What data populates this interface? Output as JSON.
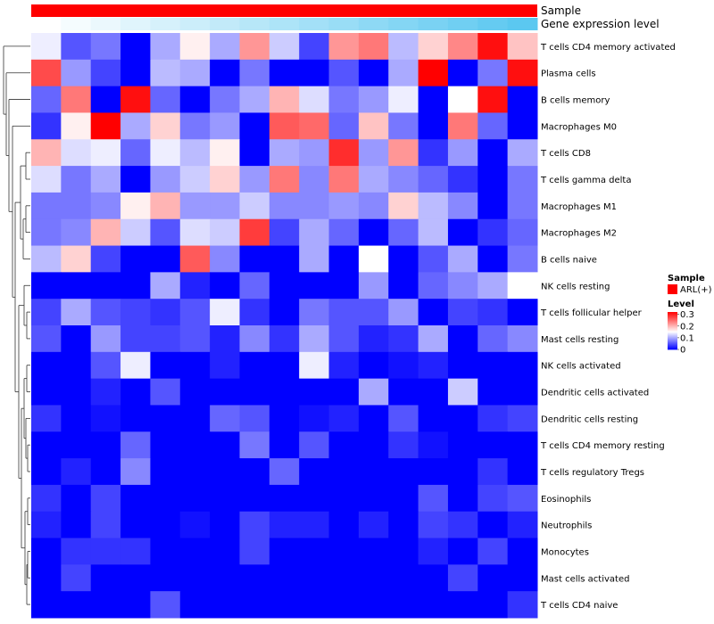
{
  "chart_data": {
    "type": "heatmap",
    "annotation_tracks": [
      "Sample",
      "Gene expression level"
    ],
    "annotation_colors": {
      "Sample": "#ff0000"
    },
    "gene_expression_gradient": [
      "#ffffff",
      "#5bc8f0"
    ],
    "rows": [
      "T cells CD4 memory activated",
      "Plasma cells",
      "B cells memory",
      "Macrophages M0",
      "T cells CD8",
      "T cells gamma delta",
      "Macrophages M1",
      "Macrophages M2",
      "B cells naive",
      "NK cells resting",
      "T cells follicular helper",
      "Mast cells resting",
      "NK cells activated",
      "Dendritic cells activated",
      "Dendritic cells resting",
      "T cells CD4 memory resting",
      "T cells regulatory  Tregs",
      "Eosinophils",
      "Neutrophils",
      "Monocytes",
      "Mast cells activated",
      "T cells CD4 naive"
    ],
    "values": [
      [
        0.14,
        0.05,
        0.07,
        0.0,
        0.1,
        0.16,
        0.1,
        0.22,
        0.12,
        0.04,
        0.22,
        0.24,
        0.11,
        0.18,
        0.23,
        0.31,
        0.19
      ],
      [
        0.27,
        0.09,
        0.04,
        0.0,
        0.11,
        0.1,
        0.0,
        0.07,
        0.0,
        0.0,
        0.05,
        0.0,
        0.1,
        0.32,
        0.0,
        0.07,
        0.31
      ],
      [
        0.06,
        0.24,
        0.0,
        0.31,
        0.06,
        0.0,
        0.07,
        0.1,
        0.2,
        0.13,
        0.07,
        0.09,
        0.14,
        0.0,
        0.15,
        0.31,
        0.0
      ],
      [
        0.03,
        0.16,
        0.32,
        0.1,
        0.18,
        0.07,
        0.09,
        0.0,
        0.26,
        0.25,
        0.06,
        0.19,
        0.07,
        0.0,
        0.24,
        0.06,
        0.0
      ],
      [
        0.2,
        0.13,
        0.14,
        0.06,
        0.14,
        0.11,
        0.16,
        0.0,
        0.1,
        0.09,
        0.29,
        0.09,
        0.22,
        0.03,
        0.09,
        0.0,
        0.1
      ],
      [
        0.13,
        0.07,
        0.1,
        0.0,
        0.09,
        0.12,
        0.18,
        0.09,
        0.24,
        0.08,
        0.24,
        0.1,
        0.08,
        0.06,
        0.03,
        0.0,
        0.07
      ],
      [
        0.07,
        0.07,
        0.08,
        0.16,
        0.2,
        0.09,
        0.09,
        0.12,
        0.08,
        0.08,
        0.09,
        0.08,
        0.18,
        0.11,
        0.08,
        0.0,
        0.07
      ],
      [
        0.07,
        0.08,
        0.2,
        0.12,
        0.05,
        0.13,
        0.12,
        0.28,
        0.04,
        0.1,
        0.06,
        0.0,
        0.06,
        0.11,
        0.0,
        0.03,
        0.06
      ],
      [
        0.11,
        0.18,
        0.04,
        0.0,
        0.0,
        0.26,
        0.08,
        0.0,
        0.0,
        0.1,
        0.0,
        0.15,
        0.0,
        0.05,
        0.1,
        0.0,
        0.07
      ],
      [
        0.0,
        0.0,
        0.0,
        0.0,
        0.1,
        0.02,
        0.0,
        0.06,
        0.0,
        0.0,
        0.0,
        0.09,
        0.0,
        0.06,
        0.08,
        0.1,
        0.15
      ],
      [
        0.04,
        0.1,
        0.05,
        0.04,
        0.03,
        0.05,
        0.14,
        0.03,
        0.0,
        0.07,
        0.05,
        0.05,
        0.09,
        0.0,
        0.04,
        0.03,
        0.0
      ],
      [
        0.05,
        0.0,
        0.09,
        0.04,
        0.04,
        0.05,
        0.02,
        0.08,
        0.03,
        0.1,
        0.05,
        0.02,
        0.03,
        0.1,
        0.0,
        0.06,
        0.08
      ],
      [
        0.0,
        0.0,
        0.05,
        0.14,
        0.0,
        0.0,
        0.02,
        0.0,
        0.0,
        0.14,
        0.02,
        0.0,
        0.01,
        0.02,
        0.0,
        0.0,
        0.0
      ],
      [
        0.0,
        0.0,
        0.02,
        0.0,
        0.05,
        0.0,
        0.0,
        0.0,
        0.0,
        0.0,
        0.0,
        0.1,
        0.0,
        0.0,
        0.12,
        0.0,
        0.0
      ],
      [
        0.03,
        0.0,
        0.01,
        0.0,
        0.0,
        0.0,
        0.06,
        0.05,
        0.0,
        0.01,
        0.02,
        0.0,
        0.05,
        0.0,
        0.0,
        0.03,
        0.04
      ],
      [
        0.0,
        0.0,
        0.0,
        0.06,
        0.0,
        0.0,
        0.0,
        0.07,
        0.0,
        0.05,
        0.0,
        0.0,
        0.03,
        0.01,
        0.0,
        0.0,
        0.0
      ],
      [
        0.0,
        0.02,
        0.0,
        0.08,
        0.0,
        0.0,
        0.0,
        0.0,
        0.06,
        0.0,
        0.0,
        0.0,
        0.0,
        0.0,
        0.0,
        0.03,
        0.0
      ],
      [
        0.03,
        0.0,
        0.04,
        0.0,
        0.0,
        0.0,
        0.0,
        0.0,
        0.0,
        0.0,
        0.0,
        0.0,
        0.0,
        0.05,
        0.0,
        0.04,
        0.05
      ],
      [
        0.02,
        0.0,
        0.04,
        0.0,
        0.0,
        0.01,
        0.0,
        0.04,
        0.02,
        0.02,
        0.0,
        0.02,
        0.0,
        0.04,
        0.03,
        0.0,
        0.02
      ],
      [
        0.0,
        0.03,
        0.03,
        0.03,
        0.0,
        0.0,
        0.0,
        0.04,
        0.0,
        0.0,
        0.0,
        0.0,
        0.0,
        0.02,
        0.0,
        0.04,
        0.0
      ],
      [
        0.0,
        0.04,
        0.0,
        0.0,
        0.0,
        0.0,
        0.0,
        0.0,
        0.0,
        0.0,
        0.0,
        0.0,
        0.0,
        0.0,
        0.04,
        0.0,
        0.0
      ],
      [
        0.0,
        0.0,
        0.0,
        0.0,
        0.05,
        0.0,
        0.0,
        0.0,
        0.0,
        0.0,
        0.0,
        0.0,
        0.0,
        0.0,
        0.0,
        0.0,
        0.03
      ]
    ],
    "color_scale": {
      "low": "#0000ff",
      "mid": "#ffffff",
      "high": "#ff0000",
      "min": 0,
      "mid_value": 0.15,
      "max": 0.32
    },
    "legend": {
      "sample_title": "Sample",
      "sample_items": [
        {
          "label": "ARL(+)",
          "color": "#ff0000"
        }
      ],
      "level_title": "Level",
      "level_ticks": [
        "0.3",
        "0.2",
        "0.1",
        "0"
      ],
      "level_tick_values": [
        0.3,
        0.2,
        0.1,
        0
      ],
      "placement": "right"
    },
    "dendrogram": "rows"
  }
}
